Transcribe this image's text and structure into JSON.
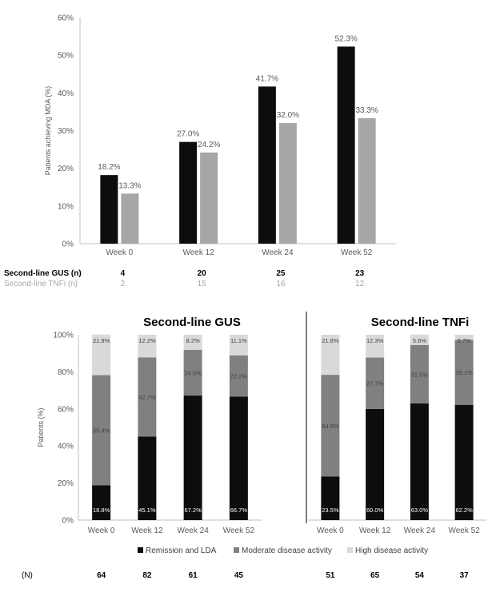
{
  "chart_data": [
    {
      "type": "bar",
      "ylabel": "Patients achieving MDA (%)",
      "ylim": [
        0,
        60
      ],
      "yticks": [
        "0%",
        "10%",
        "20%",
        "30%",
        "40%",
        "50%",
        "60%"
      ],
      "categories": [
        "Week 0",
        "Week 12",
        "Week 24",
        "Week 52"
      ],
      "series": [
        {
          "name": "Second-line GUS (n)",
          "values": [
            18.2,
            27.0,
            41.7,
            52.3
          ],
          "labels": [
            "18.2%",
            "27.0%",
            "41.7%",
            "52.3%"
          ],
          "color": "#0d0d0d",
          "n": [
            "4",
            "20",
            "25",
            "23"
          ]
        },
        {
          "name": "Second-line TNFi (n)",
          "values": [
            13.3,
            24.2,
            32.0,
            33.3
          ],
          "labels": [
            "13.3%",
            "24.2%",
            "32.0%",
            "33.3%"
          ],
          "color": "#a6a6a6",
          "n": [
            "2",
            "15",
            "16",
            "12"
          ]
        }
      ]
    },
    {
      "type": "bar",
      "stacked": true,
      "title": "Second-line GUS",
      "ylabel": "Patients (%)",
      "ylim": [
        0,
        100
      ],
      "yticks": [
        "0%",
        "20%",
        "40%",
        "60%",
        "80%",
        "100%"
      ],
      "categories": [
        "Week 0",
        "Week 12",
        "Week 24",
        "Week 52"
      ],
      "series": [
        {
          "name": "Remission and LDA",
          "values": [
            18.8,
            45.1,
            67.2,
            66.7
          ],
          "labels": [
            "18.8%",
            "45.1%",
            "67.2%",
            "66.7%"
          ],
          "color": "#0d0d0d"
        },
        {
          "name": "Moderate disease activity",
          "values": [
            59.4,
            42.7,
            24.6,
            22.2
          ],
          "labels": [
            "59.4%",
            "42.7%",
            "24.6%",
            "22.2%"
          ],
          "color": "#808080"
        },
        {
          "name": "High disease activity",
          "values": [
            21.9,
            12.2,
            8.2,
            11.1
          ],
          "labels": [
            "21.9%",
            "12.2%",
            "8.2%",
            "11.1%"
          ],
          "color": "#d9d9d9"
        }
      ],
      "n": [
        "64",
        "82",
        "61",
        "45"
      ]
    },
    {
      "type": "bar",
      "stacked": true,
      "title": "Second-line TNFi",
      "ylim": [
        0,
        100
      ],
      "categories": [
        "Week 0",
        "Week 12",
        "Week 24",
        "Week 52"
      ],
      "series": [
        {
          "name": "Remission and LDA",
          "values": [
            23.5,
            60.0,
            63.0,
            62.2
          ],
          "labels": [
            "23.5%",
            "60.0%",
            "63.0%",
            "62.2%"
          ],
          "color": "#0d0d0d"
        },
        {
          "name": "Moderate disease activity",
          "values": [
            54.9,
            27.7,
            31.5,
            35.1
          ],
          "labels": [
            "54.9%",
            "27.7%",
            "31.5%",
            "35.1%"
          ],
          "color": "#808080"
        },
        {
          "name": "High disease activity",
          "values": [
            21.6,
            12.3,
            5.6,
            2.7
          ],
          "labels": [
            "21.6%",
            "12.3%",
            "5.6%",
            "2.7%"
          ],
          "color": "#d9d9d9"
        }
      ],
      "n": [
        "51",
        "65",
        "54",
        "37"
      ]
    }
  ],
  "legend": {
    "items": [
      {
        "label": "Remission and LDA",
        "color": "#0d0d0d"
      },
      {
        "label": "Moderate disease activity",
        "color": "#808080"
      },
      {
        "label": "High disease activity",
        "color": "#d9d9d9"
      }
    ]
  },
  "n_label": "(N)"
}
